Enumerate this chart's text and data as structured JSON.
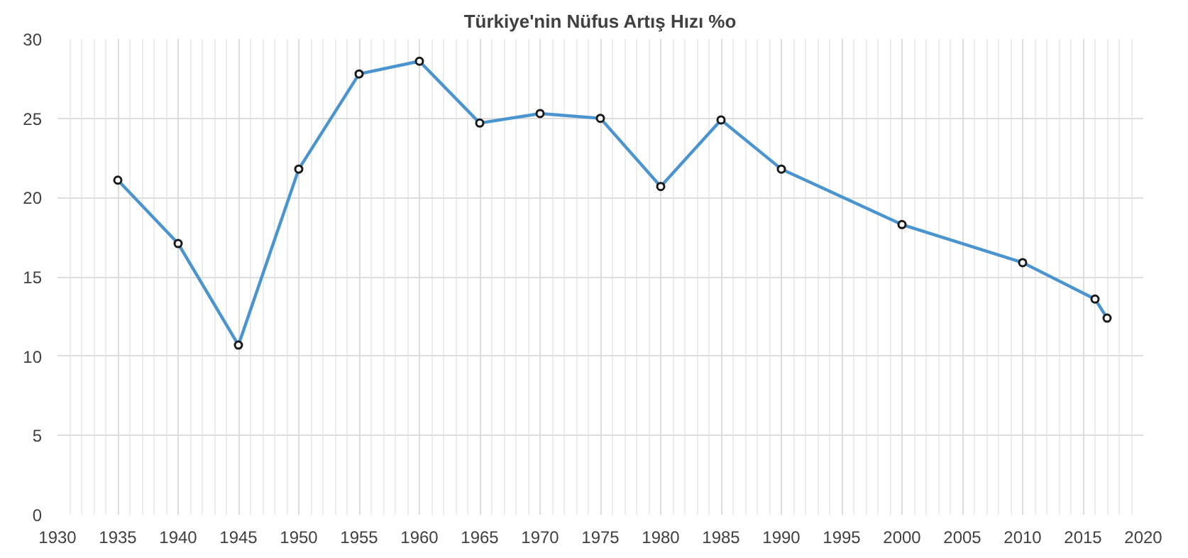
{
  "chart_data": {
    "type": "line",
    "title": "Türkiye'nin Nüfus Artış Hızı %o",
    "x": [
      1935,
      1940,
      1945,
      1950,
      1955,
      1960,
      1965,
      1970,
      1975,
      1980,
      1985,
      1990,
      2000,
      2010,
      2016,
      2017
    ],
    "series": [
      {
        "color": "#4a94cf",
        "values": [
          21.1,
          17.1,
          10.7,
          21.8,
          27.8,
          28.6,
          24.7,
          25.3,
          25.0,
          20.7,
          24.9,
          21.8,
          18.3,
          15.9,
          13.6,
          12.4
        ]
      }
    ],
    "xlim": [
      1930,
      2020
    ],
    "xticks": [
      1930,
      1935,
      1940,
      1945,
      1950,
      1955,
      1960,
      1965,
      1970,
      1975,
      1980,
      1985,
      1990,
      1995,
      2000,
      2005,
      2010,
      2015,
      2020
    ],
    "ylim": [
      0,
      30
    ],
    "yticks": [
      0,
      5,
      10,
      15,
      20,
      25,
      30
    ],
    "grid": true,
    "marker": "circle",
    "line_style": "solid"
  }
}
